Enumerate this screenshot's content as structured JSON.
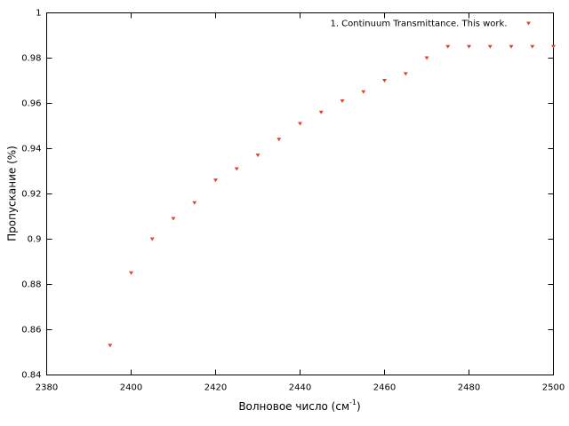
{
  "chart_data": {
    "type": "scatter",
    "xlabel": {
      "text": "Волновое число (см",
      "superscript": "-1",
      "suffix": ")"
    },
    "ylabel": "Пропускание (%)",
    "x": [
      2395,
      2400,
      2405,
      2410,
      2415,
      2420,
      2425,
      2430,
      2435,
      2440,
      2445,
      2450,
      2455,
      2460,
      2465,
      2470,
      2475,
      2480,
      2485,
      2490,
      2495,
      2500
    ],
    "series": [
      {
        "name": "1. Continuum Transmittance. This work.",
        "color": "#e8402a",
        "values": [
          0.853,
          0.885,
          0.9,
          0.909,
          0.916,
          0.926,
          0.931,
          0.937,
          0.944,
          0.951,
          0.956,
          0.961,
          0.965,
          0.97,
          0.973,
          0.98,
          0.985,
          0.985,
          0.985,
          0.985,
          0.985,
          0.985
        ]
      }
    ],
    "xlim": [
      2380,
      2500
    ],
    "xticks": [
      2380,
      2400,
      2420,
      2440,
      2460,
      2480,
      2500
    ],
    "ylim": [
      0.84,
      1
    ],
    "yticks": [
      0.84,
      0.86,
      0.88,
      0.9,
      0.92,
      0.94,
      0.96,
      0.98,
      1
    ],
    "grid": false,
    "legend": "top-right"
  }
}
